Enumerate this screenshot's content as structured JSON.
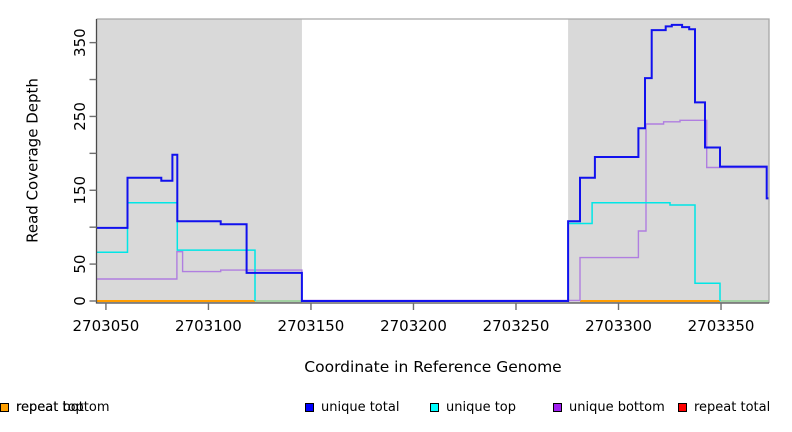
{
  "axes": {
    "y_title": "Read Coverage Depth",
    "x_title": "Coordinate in Reference Genome"
  },
  "legend": {
    "items": [
      {
        "label": "unique total",
        "color": "#0000FF"
      },
      {
        "label": "unique top",
        "color": "#00FFFF"
      },
      {
        "label": "unique bottom",
        "color": "#A020F0"
      },
      {
        "label": "repeat total",
        "color": "#FF0000"
      },
      {
        "label": "repeat top",
        "color": "#FFFF00"
      },
      {
        "label": "repeat bottom",
        "color": "#FFA000"
      }
    ]
  },
  "chart_data": {
    "type": "line",
    "title": "",
    "xlabel": "Coordinate in Reference Genome",
    "ylabel": "Read Coverage Depth",
    "xlim": [
      2703045.4,
      2703373.4
    ],
    "ylim": [
      0,
      382
    ],
    "grid": false,
    "background_band_color": "#D9D9D9",
    "repeat_regions": [
      [
        2703045.4,
        2703145.6
      ],
      [
        2703275.4,
        2703373.4
      ]
    ],
    "x_ticks": [
      {
        "v": 2703050,
        "label": "2703050"
      },
      {
        "v": 2703100,
        "label": "2703100"
      },
      {
        "v": 2703150,
        "label": "2703150"
      },
      {
        "v": 2703200,
        "label": "2703200"
      },
      {
        "v": 2703250,
        "label": "2703250"
      },
      {
        "v": 2703300,
        "label": "2703300"
      },
      {
        "v": 2703350,
        "label": "2703350"
      }
    ],
    "y_ticks": [
      {
        "v": 0,
        "label": "0"
      },
      {
        "v": 50,
        "label": "50"
      },
      {
        "v": 100,
        "label": ""
      },
      {
        "v": 150,
        "label": "150"
      },
      {
        "v": 200,
        "label": ""
      },
      {
        "v": 250,
        "label": "250"
      },
      {
        "v": 300,
        "label": ""
      },
      {
        "v": 350,
        "label": "350"
      }
    ],
    "series": [
      {
        "name": "unique total",
        "color": "#1111EE",
        "width": 2,
        "dy": 0,
        "parts": [
          [
            [
              2703045.4,
              99
            ],
            [
              2703060.5,
              167
            ],
            [
              2703077.0,
              163
            ],
            [
              2703082.4,
              198
            ],
            [
              2703084.8,
              108
            ],
            [
              2703106.0,
              104
            ],
            [
              2703118.6,
              38
            ],
            [
              2703145.6,
              0
            ],
            [
              2703275.4,
              108
            ],
            [
              2703281.2,
              167
            ],
            [
              2703288.5,
              195
            ],
            [
              2703309.7,
              234
            ],
            [
              2703312.9,
              302
            ],
            [
              2703316.2,
              367
            ],
            [
              2703323.0,
              372
            ],
            [
              2703326.0,
              374
            ],
            [
              2703331.0,
              371
            ],
            [
              2703334.5,
              368
            ],
            [
              2703337.3,
              269
            ],
            [
              2703342.2,
              208
            ],
            [
              2703349.5,
              182
            ],
            [
              2703372.3,
              139
            ]
          ]
        ],
        "ends": [
          2703373.4
        ]
      },
      {
        "name": "unique top",
        "color": "#00E6E6",
        "width": 1.5,
        "dy": 0,
        "parts": [
          [
            [
              2703045.4,
              66
            ],
            [
              2703060.5,
              133
            ],
            [
              2703084.8,
              69
            ],
            [
              2703122.7,
              0
            ]
          ],
          [
            [
              2703275.4,
              0
            ],
            [
              2703275.4,
              105
            ],
            [
              2703287.1,
              133
            ],
            [
              2703325.1,
              130
            ],
            [
              2703337.3,
              24
            ],
            [
              2703349.5,
              0
            ]
          ]
        ],
        "ends": [
          2703122.7,
          2703349.5
        ]
      },
      {
        "name": "unique bottom",
        "color": "#B07EE0",
        "width": 1.4,
        "dy": -0.6,
        "parts": [
          [
            [
              2703045.4,
              29
            ],
            [
              2703084.6,
              66
            ],
            [
              2703087.4,
              39
            ],
            [
              2703106.0,
              41
            ],
            [
              2703145.6,
              0
            ],
            [
              2703281.2,
              58
            ],
            [
              2703309.7,
              94
            ],
            [
              2703313.4,
              239
            ],
            [
              2703322.0,
              242
            ],
            [
              2703330.0,
              244
            ],
            [
              2703343.0,
              180
            ],
            [
              2703372.3,
              139
            ]
          ]
        ],
        "ends": [
          2703373.4
        ]
      },
      {
        "name": "repeat total",
        "color": "#EE0000",
        "width": 1.5,
        "dy": 0,
        "parts": [],
        "ends": [],
        "values": "0 across both repeat regions"
      },
      {
        "name": "repeat top",
        "color": "#FFFF00",
        "width": 1.5,
        "dy": 0,
        "parts": [],
        "ends": [],
        "values": "0 across both repeat regions"
      },
      {
        "name": "repeat bottom",
        "color": "#FF9D00",
        "width": 2,
        "dy": 0,
        "parts": [
          [
            [
              2703045.4,
              0
            ]
          ],
          [
            [
              2703281.2,
              0
            ]
          ]
        ],
        "ends": [
          2703122.7,
          2703349.5
        ]
      }
    ],
    "zero_overlap_segments": [
      {
        "from": 2703122.7,
        "to": 2703145.6,
        "color": "#8FCD8F"
      },
      {
        "from": 2703349.5,
        "to": 2703373.4,
        "color": "#8FCD8F"
      }
    ]
  }
}
